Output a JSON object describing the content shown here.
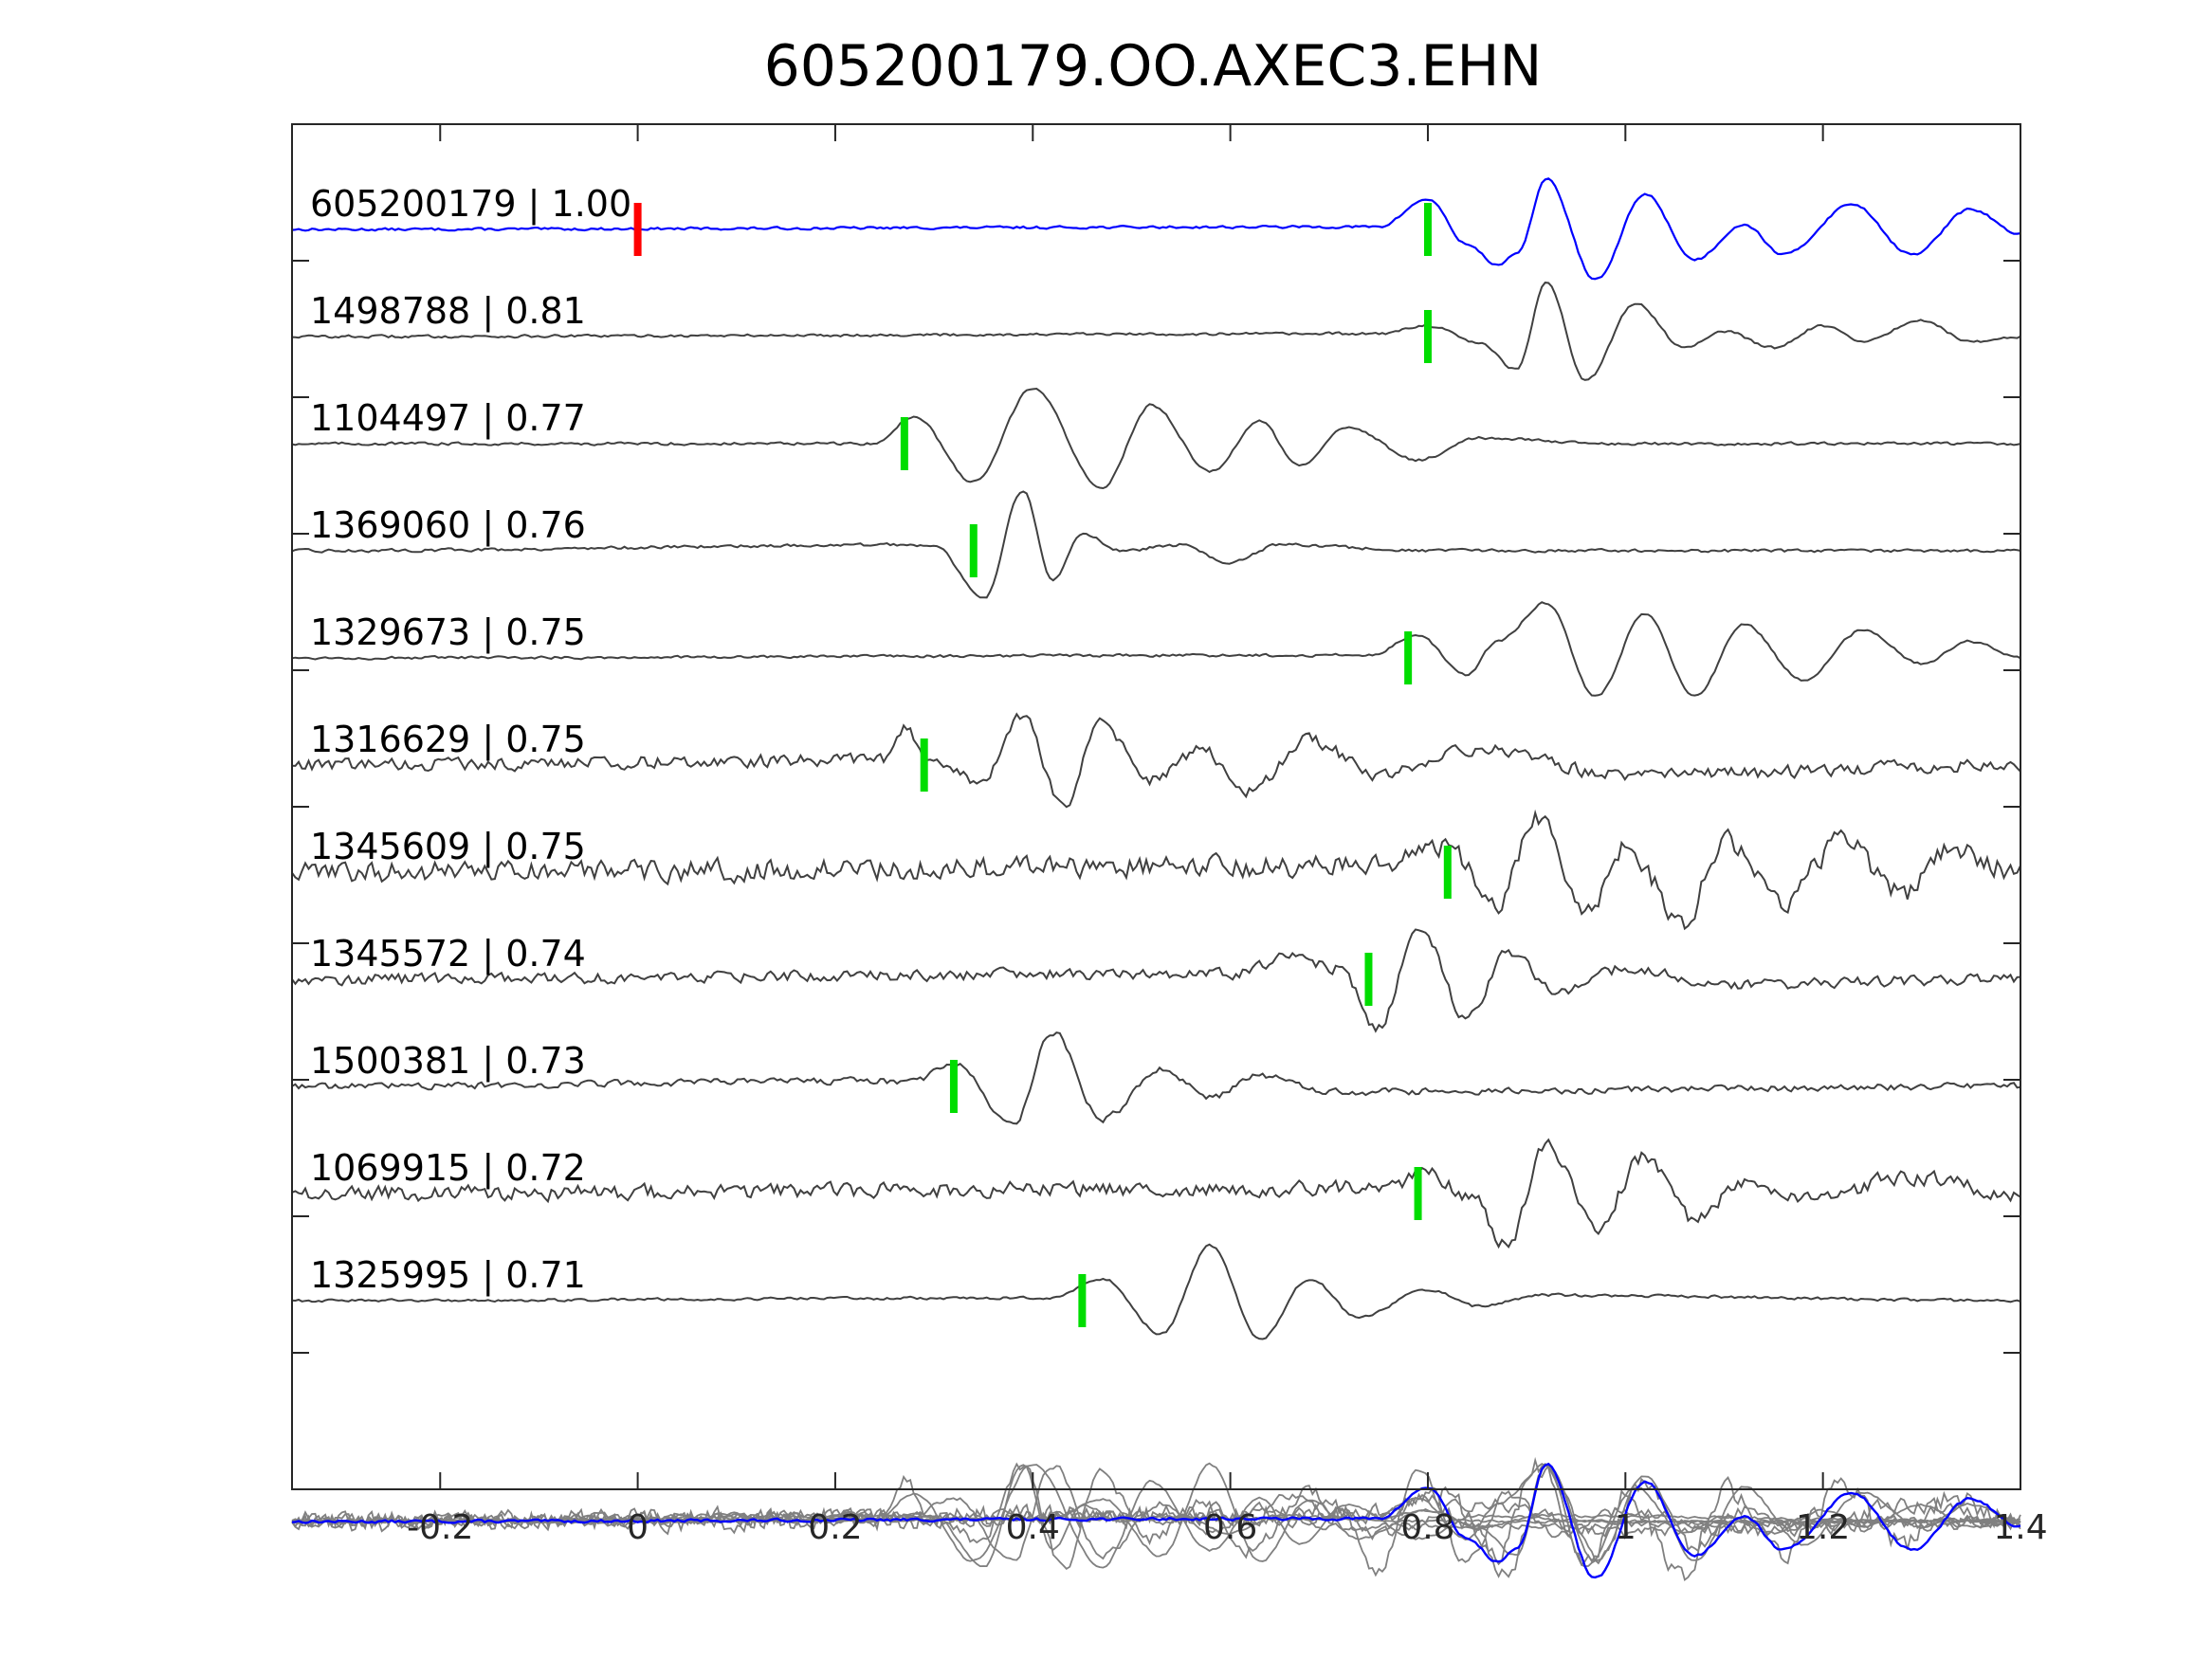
{
  "chart_data": {
    "type": "line",
    "title": "605200179.OO.AXEC3.EHN",
    "xlabel": "",
    "ylabel": "",
    "xlim": [
      -0.35,
      1.4
    ],
    "x_ticks": [
      {
        "value": -0.2,
        "label": "-0.2"
      },
      {
        "value": 0,
        "label": "0"
      },
      {
        "value": 0.2,
        "label": "0.2"
      },
      {
        "value": 0.4,
        "label": "0.4"
      },
      {
        "value": 0.6,
        "label": "0.6"
      },
      {
        "value": 0.8,
        "label": "0.8"
      },
      {
        "value": 1,
        "label": "1"
      },
      {
        "value": 1.2,
        "label": "1.2"
      },
      {
        "value": 1.4,
        "label": "1.4"
      }
    ],
    "y_ticks_count": 9,
    "grid": false,
    "colors": {
      "master": "#0000ff",
      "trace": "#404040",
      "stack": "#808080",
      "origin_marker": "#ff0000",
      "pick_marker": "#00dd00"
    },
    "origin_pick": 0.0,
    "series": [
      {
        "label": "605200179 | 1.00",
        "pick": 0.8,
        "style": "master",
        "amplitude": 0.55,
        "keypoints": [
          [
            -0.35,
            0
          ],
          [
            0.75,
            0.05
          ],
          [
            0.8,
            0.6
          ],
          [
            0.84,
            -0.3
          ],
          [
            0.87,
            -0.7
          ],
          [
            0.89,
            -0.5
          ],
          [
            0.92,
            1.0
          ],
          [
            0.97,
            -1.0
          ],
          [
            1.02,
            0.7
          ],
          [
            1.07,
            -0.6
          ],
          [
            1.12,
            0.1
          ],
          [
            1.16,
            -0.5
          ],
          [
            1.23,
            0.5
          ],
          [
            1.29,
            -0.5
          ],
          [
            1.35,
            0.4
          ],
          [
            1.4,
            -0.1
          ]
        ]
      },
      {
        "label": "1498788 | 0.81",
        "pick": 0.8,
        "style": "trace",
        "amplitude": 0.6,
        "keypoints": [
          [
            -0.35,
            0
          ],
          [
            0.75,
            0.05
          ],
          [
            0.8,
            0.2
          ],
          [
            0.85,
            -0.1
          ],
          [
            0.89,
            -0.6
          ],
          [
            0.92,
            1.0
          ],
          [
            0.96,
            -0.8
          ],
          [
            1.01,
            0.6
          ],
          [
            1.06,
            -0.2
          ],
          [
            1.1,
            0.1
          ],
          [
            1.15,
            -0.2
          ],
          [
            1.2,
            0.2
          ],
          [
            1.24,
            -0.1
          ],
          [
            1.3,
            0.3
          ],
          [
            1.35,
            -0.1
          ],
          [
            1.4,
            0
          ]
        ]
      },
      {
        "label": "1104497 | 0.77",
        "pick": 0.27,
        "style": "trace",
        "amplitude": 0.6,
        "keypoints": [
          [
            -0.35,
            0
          ],
          [
            0.24,
            0
          ],
          [
            0.28,
            0.5
          ],
          [
            0.34,
            -0.7
          ],
          [
            0.4,
            1.0
          ],
          [
            0.47,
            -0.8
          ],
          [
            0.52,
            0.7
          ],
          [
            0.58,
            -0.5
          ],
          [
            0.63,
            0.4
          ],
          [
            0.67,
            -0.4
          ],
          [
            0.72,
            0.3
          ],
          [
            0.79,
            -0.3
          ],
          [
            0.85,
            0.1
          ],
          [
            1.0,
            0
          ],
          [
            1.4,
            0
          ]
        ]
      },
      {
        "label": "1369060 | 0.76",
        "pick": 0.34,
        "style": "trace",
        "amplitude": 0.65,
        "keypoints": [
          [
            -0.35,
            0
          ],
          [
            0.3,
            0.1
          ],
          [
            0.35,
            -0.8
          ],
          [
            0.39,
            1.0
          ],
          [
            0.42,
            -0.5
          ],
          [
            0.45,
            0.3
          ],
          [
            0.49,
            0
          ],
          [
            0.55,
            0.1
          ],
          [
            0.6,
            -0.2
          ],
          [
            0.65,
            0.1
          ],
          [
            0.8,
            0
          ],
          [
            1.4,
            0
          ]
        ]
      },
      {
        "label": "1329673 | 0.75",
        "pick": 0.78,
        "style": "trace",
        "amplitude": 0.6,
        "keypoints": [
          [
            -0.35,
            0
          ],
          [
            0.74,
            0.05
          ],
          [
            0.79,
            0.4
          ],
          [
            0.84,
            -0.3
          ],
          [
            0.87,
            0.3
          ],
          [
            0.92,
            1.0
          ],
          [
            0.97,
            -0.7
          ],
          [
            1.02,
            0.8
          ],
          [
            1.07,
            -0.7
          ],
          [
            1.12,
            0.6
          ],
          [
            1.18,
            -0.4
          ],
          [
            1.24,
            0.5
          ],
          [
            1.3,
            -0.1
          ],
          [
            1.35,
            0.3
          ],
          [
            1.4,
            0
          ]
        ]
      },
      {
        "label": "1316629 | 0.75",
        "pick": 0.29,
        "style": "trace",
        "amplitude": 0.55,
        "noise": 0.25,
        "keypoints": [
          [
            -0.35,
            0
          ],
          [
            0.25,
            0.1
          ],
          [
            0.27,
            0.7
          ],
          [
            0.3,
            0
          ],
          [
            0.35,
            -0.3
          ],
          [
            0.39,
            1.0
          ],
          [
            0.43,
            -0.8
          ],
          [
            0.47,
            0.8
          ],
          [
            0.52,
            -0.3
          ],
          [
            0.57,
            0.3
          ],
          [
            0.62,
            -0.5
          ],
          [
            0.68,
            0.5
          ],
          [
            0.75,
            -0.2
          ],
          [
            0.85,
            0.3
          ],
          [
            1.0,
            -0.2
          ],
          [
            1.4,
            0
          ]
        ]
      },
      {
        "label": "1345609 | 0.75",
        "pick": 0.82,
        "style": "trace",
        "amplitude": 0.6,
        "noise": 0.4,
        "keypoints": [
          [
            -0.35,
            0
          ],
          [
            0.75,
            0.1
          ],
          [
            0.82,
            0.5
          ],
          [
            0.87,
            -0.6
          ],
          [
            0.91,
            1.0
          ],
          [
            0.96,
            -0.7
          ],
          [
            1.0,
            0.5
          ],
          [
            1.06,
            -0.9
          ],
          [
            1.1,
            0.6
          ],
          [
            1.16,
            -0.5
          ],
          [
            1.22,
            0.6
          ],
          [
            1.28,
            -0.4
          ],
          [
            1.33,
            0.4
          ],
          [
            1.4,
            0
          ]
        ]
      },
      {
        "label": "1345572 | 0.74",
        "pick": 0.74,
        "style": "trace",
        "amplitude": 0.6,
        "noise": 0.2,
        "keypoints": [
          [
            -0.35,
            0
          ],
          [
            0.6,
            0.1
          ],
          [
            0.66,
            0.4
          ],
          [
            0.71,
            0.2
          ],
          [
            0.75,
            -0.9
          ],
          [
            0.79,
            1.0
          ],
          [
            0.84,
            -0.7
          ],
          [
            0.88,
            0.5
          ],
          [
            0.93,
            -0.2
          ],
          [
            1.0,
            0.2
          ],
          [
            1.1,
            -0.1
          ],
          [
            1.4,
            0
          ]
        ]
      },
      {
        "label": "1500381 | 0.73",
        "pick": 0.32,
        "style": "trace",
        "amplitude": 0.6,
        "noise": 0.12,
        "keypoints": [
          [
            -0.35,
            0
          ],
          [
            0.28,
            0.1
          ],
          [
            0.32,
            0.4
          ],
          [
            0.38,
            -0.7
          ],
          [
            0.42,
            1.0
          ],
          [
            0.47,
            -0.6
          ],
          [
            0.53,
            0.3
          ],
          [
            0.58,
            -0.2
          ],
          [
            0.63,
            0.2
          ],
          [
            0.7,
            -0.1
          ],
          [
            1.4,
            0
          ]
        ]
      },
      {
        "label": "1069915 | 0.72",
        "pick": 0.79,
        "style": "trace",
        "amplitude": 0.6,
        "noise": 0.28,
        "keypoints": [
          [
            -0.35,
            0
          ],
          [
            0.76,
            0.1
          ],
          [
            0.8,
            0.4
          ],
          [
            0.84,
            0
          ],
          [
            0.88,
            -0.9
          ],
          [
            0.92,
            0.9
          ],
          [
            0.97,
            -0.6
          ],
          [
            1.02,
            0.7
          ],
          [
            1.07,
            -0.5
          ],
          [
            1.12,
            0.2
          ],
          [
            1.2,
            -0.1
          ],
          [
            1.28,
            0.3
          ],
          [
            1.4,
            0
          ]
        ]
      },
      {
        "label": "1325995 | 0.71",
        "pick": 0.45,
        "style": "trace",
        "amplitude": 0.6,
        "keypoints": [
          [
            -0.35,
            0
          ],
          [
            0.42,
            0.05
          ],
          [
            0.47,
            0.4
          ],
          [
            0.53,
            -0.6
          ],
          [
            0.58,
            1.0
          ],
          [
            0.63,
            -0.7
          ],
          [
            0.68,
            0.4
          ],
          [
            0.73,
            -0.3
          ],
          [
            0.8,
            0.2
          ],
          [
            0.85,
            -0.1
          ],
          [
            0.92,
            0.1
          ],
          [
            1.4,
            0
          ]
        ]
      }
    ],
    "stack_overlay": true
  }
}
